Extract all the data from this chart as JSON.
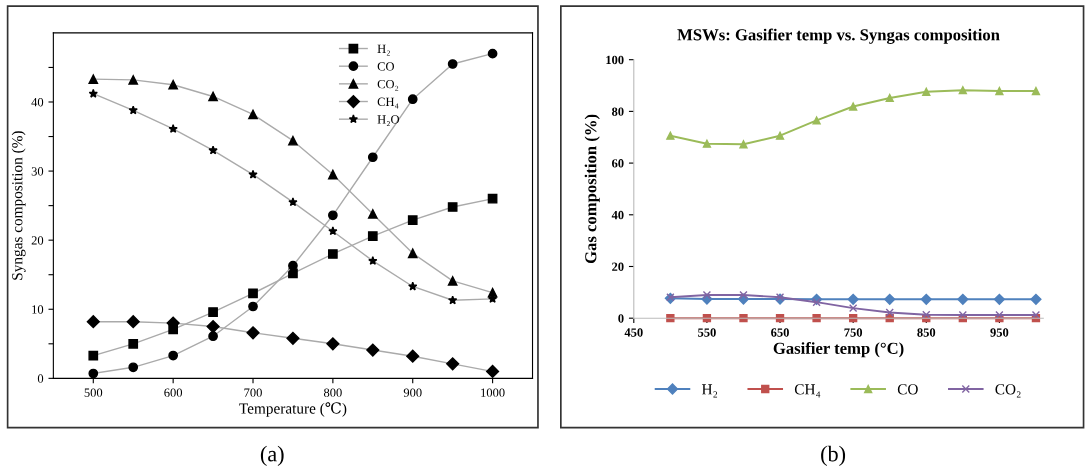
{
  "chart_data": [
    {
      "type": "line",
      "xlabel": "Temperature (℃)",
      "ylabel": "Syngas composition (%)",
      "x": [
        500,
        550,
        600,
        650,
        700,
        750,
        800,
        850,
        900,
        950,
        1000
      ],
      "xlim": [
        450,
        1050
      ],
      "xticks": [
        500,
        600,
        700,
        800,
        900,
        1000
      ],
      "ylim": [
        0,
        50
      ],
      "yticks": [
        0,
        {
          "value": 5,
          "label": null
        },
        10,
        {
          "value": 15,
          "label": null
        },
        20,
        {
          "value": 25,
          "label": null
        },
        30,
        {
          "value": 35,
          "label": null
        },
        40,
        {
          "value": 45,
          "label": null
        }
      ],
      "legend": "top",
      "grid": false,
      "annotations": [
        "(a)"
      ],
      "series": [
        {
          "name": "H₂",
          "color": "#000000",
          "marker": "square",
          "values": [
            3.3,
            5.0,
            7.1,
            9.6,
            12.3,
            15.2,
            18.0,
            20.6,
            22.9,
            24.8,
            26.0
          ]
        },
        {
          "name": "CO",
          "color": "#000000",
          "marker": "circle",
          "values": [
            0.7,
            1.6,
            3.3,
            6.1,
            10.4,
            16.3,
            23.6,
            32.0,
            40.4,
            45.5,
            47.0
          ]
        },
        {
          "name": "CO₂",
          "color": "#000000",
          "marker": "triangle",
          "values": [
            43.3,
            43.2,
            42.5,
            40.8,
            38.2,
            34.4,
            29.5,
            23.8,
            18.1,
            14.1,
            12.4
          ]
        },
        {
          "name": "CH₄",
          "color": "#000000",
          "marker": "diamond",
          "values": [
            8.2,
            8.2,
            8.0,
            7.5,
            6.6,
            5.8,
            5.0,
            4.1,
            3.2,
            2.1,
            1.0
          ]
        },
        {
          "name": "H₂O",
          "color": "#000000",
          "marker": "star",
          "values": [
            41.2,
            38.8,
            36.1,
            33.0,
            29.5,
            25.5,
            21.3,
            17.0,
            13.3,
            11.3,
            11.5
          ]
        }
      ]
    },
    {
      "type": "line",
      "title": "MSWs: Gasifier temp vs. Syngas composition",
      "xlabel": "Gasifier temp (°C)",
      "ylabel": "Gas composition (%)",
      "x": [
        500,
        550,
        600,
        650,
        700,
        750,
        800,
        850,
        900,
        950,
        1000
      ],
      "xlim": [
        450,
        1010
      ],
      "xticks": [
        450,
        550,
        650,
        750,
        850,
        950
      ],
      "ylim": [
        0,
        100
      ],
      "yticks": [
        0,
        20,
        40,
        60,
        80,
        100
      ],
      "legend": "bottom",
      "grid": false,
      "annotations": [
        "(b)"
      ],
      "series": [
        {
          "name": "H₂",
          "color": "#4f81bd",
          "marker": "diamond",
          "values": [
            7.7,
            7.4,
            7.4,
            7.4,
            7.3,
            7.3,
            7.3,
            7.3,
            7.3,
            7.3,
            7.3
          ]
        },
        {
          "name": "CH₄",
          "color": "#c0504d",
          "marker": "square",
          "values": [
            0,
            0,
            0,
            0,
            0,
            0,
            0,
            0,
            0,
            0,
            0
          ]
        },
        {
          "name": "CO",
          "color": "#9bbb59",
          "marker": "triangle",
          "values": [
            70.6,
            67.5,
            67.3,
            70.6,
            76.5,
            81.9,
            85.2,
            87.6,
            88.2,
            87.9,
            87.9
          ]
        },
        {
          "name": "CO₂",
          "color": "#8064a2",
          "marker": "cross",
          "values": [
            8.1,
            9.0,
            9.0,
            8.1,
            6.2,
            3.9,
            2.2,
            1.3,
            1.2,
            1.2,
            1.2
          ]
        }
      ]
    }
  ]
}
